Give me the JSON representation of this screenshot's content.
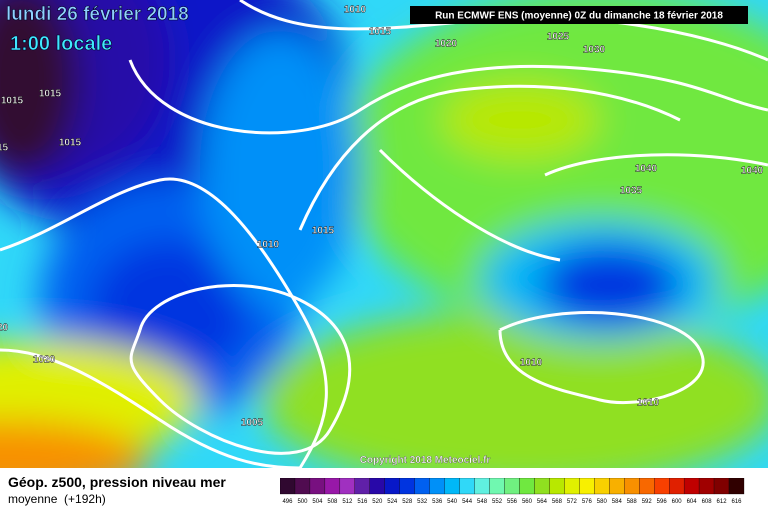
{
  "header": {
    "date": "lundi 26 février 2018",
    "time": "1:00 locale",
    "run": "Run ECMWF ENS (moyenne) 0Z du dimanche 18 février 2018"
  },
  "map": {
    "isobar_labels": [
      "1010",
      "1015",
      "1020",
      "1025",
      "1030",
      "1015",
      "1015",
      "1015",
      "1015",
      "1040",
      "1040",
      "1035",
      "1010",
      "1015",
      "1020",
      "1020",
      "1010",
      "1010",
      "1005"
    ],
    "copyright": "Copyright 2018 Meteociel.fr"
  },
  "footer": {
    "title": "Géop. z500, pression niveau mer",
    "subtitle": "moyenne",
    "lead": "(+192h)"
  },
  "colorbar": {
    "labels": [
      "496",
      "500",
      "504",
      "508",
      "512",
      "516",
      "520",
      "524",
      "528",
      "532",
      "536",
      "540",
      "544",
      "548",
      "552",
      "556",
      "560",
      "564",
      "568",
      "572",
      "576",
      "580",
      "584",
      "588",
      "592",
      "596",
      "600",
      "604",
      "608",
      "612",
      "616"
    ],
    "colors": [
      "#300830",
      "#500c50",
      "#781080",
      "#9818a8",
      "#a030c0",
      "#6020a8",
      "#2808a8",
      "#0818c8",
      "#0034e0",
      "#0060f0",
      "#0090f8",
      "#00b8f8",
      "#30d8f8",
      "#60f0e0",
      "#70f8b0",
      "#70f080",
      "#70e840",
      "#90e020",
      "#b8e800",
      "#e0f000",
      "#f8f000",
      "#f8d000",
      "#f8b000",
      "#f89000",
      "#f86800",
      "#f84000",
      "#e02000",
      "#c00000",
      "#a00000",
      "#800000",
      "#300000"
    ]
  }
}
